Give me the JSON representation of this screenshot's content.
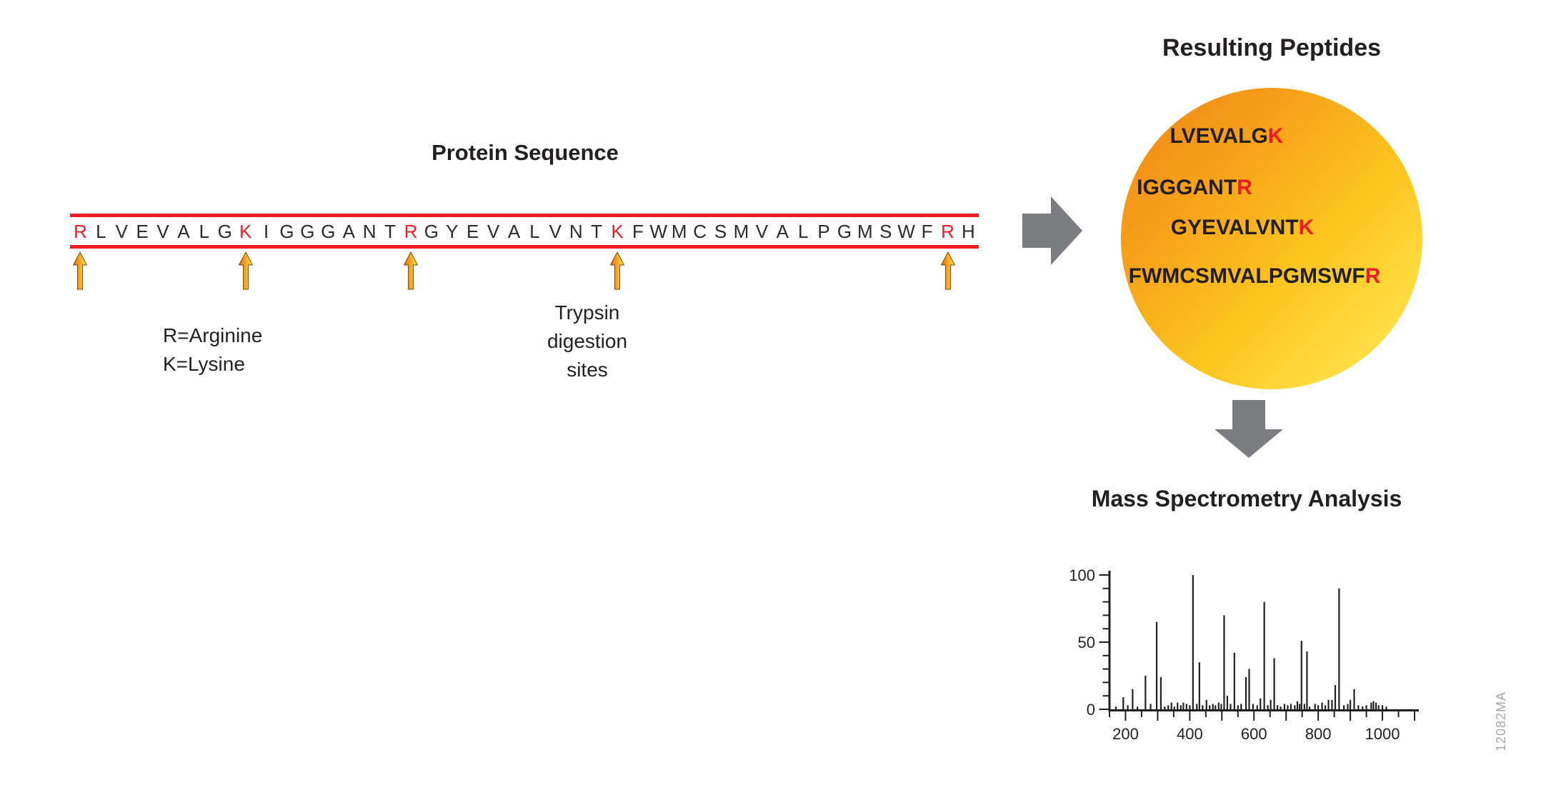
{
  "palette": {
    "accent_red": "#ed1c24",
    "text_black": "#231f20",
    "flow_arrow_gray": "#7b7d80",
    "site_arrow_orange": "#f7941d",
    "site_arrow_yellow": "#ffe14d",
    "circle_orange": "#ee8318",
    "circle_yellow": "#ffe45c",
    "watermark_gray": "#a8a8ab"
  },
  "protein": {
    "title": "Protein Sequence",
    "sequence": "RLVEVALGKIGGGANTRGYEVALVNTKFWMCSMVALPGMSWFRH",
    "red_indices": [
      0,
      8,
      16,
      26,
      42
    ],
    "legend": {
      "line1": "R=Arginine",
      "line2": "K=Lysine"
    },
    "sites_label": {
      "line1": "Trypsin",
      "line2": "digestion",
      "line3": "sites"
    }
  },
  "peptides": {
    "title": "Resulting Peptides",
    "items": [
      {
        "body": "LVEVALG",
        "terminal": "K"
      },
      {
        "body": "IGGGANT",
        "terminal": "R"
      },
      {
        "body": "GYEVALVNT",
        "terminal": "K"
      },
      {
        "body": "FWMCSMVALPGMSWF",
        "terminal": "R"
      }
    ]
  },
  "mass_spec": {
    "title": "Mass Spectrometry Analysis",
    "watermark": "12082MA"
  },
  "chart_data": {
    "type": "bar",
    "subtype": "mass-spectrum",
    "title": "Mass Spectrometry Analysis",
    "xlabel": "",
    "ylabel": "",
    "xlim": [
      150,
      1100
    ],
    "ylim": [
      0,
      100
    ],
    "x_labeled_ticks": [
      200,
      400,
      600,
      800,
      1000
    ],
    "x_minor_tick_step": 50,
    "x_major_tick_step": 100,
    "y_labeled_ticks": [
      0,
      50,
      100
    ],
    "y_minor_tick_step": 10,
    "grid": false,
    "legend_position": "none",
    "peaks": [
      [
        170,
        2
      ],
      [
        193,
        9
      ],
      [
        207,
        3
      ],
      [
        222,
        15
      ],
      [
        237,
        2
      ],
      [
        262,
        25
      ],
      [
        278,
        4
      ],
      [
        297,
        65
      ],
      [
        310,
        24
      ],
      [
        322,
        2
      ],
      [
        333,
        3
      ],
      [
        343,
        5
      ],
      [
        352,
        2
      ],
      [
        362,
        5
      ],
      [
        372,
        3
      ],
      [
        380,
        5
      ],
      [
        390,
        4
      ],
      [
        400,
        3
      ],
      [
        410,
        100
      ],
      [
        422,
        4
      ],
      [
        430,
        35
      ],
      [
        440,
        3
      ],
      [
        452,
        7
      ],
      [
        462,
        3
      ],
      [
        472,
        4
      ],
      [
        480,
        3
      ],
      [
        490,
        5
      ],
      [
        498,
        4
      ],
      [
        507,
        70
      ],
      [
        517,
        10
      ],
      [
        527,
        4
      ],
      [
        539,
        42
      ],
      [
        550,
        3
      ],
      [
        560,
        4
      ],
      [
        575,
        24
      ],
      [
        585,
        30
      ],
      [
        597,
        4
      ],
      [
        610,
        3
      ],
      [
        620,
        8
      ],
      [
        632,
        80
      ],
      [
        643,
        3
      ],
      [
        652,
        7
      ],
      [
        663,
        38
      ],
      [
        673,
        3
      ],
      [
        683,
        2
      ],
      [
        695,
        4
      ],
      [
        705,
        3
      ],
      [
        715,
        4
      ],
      [
        727,
        3
      ],
      [
        735,
        6
      ],
      [
        742,
        4
      ],
      [
        748,
        51
      ],
      [
        757,
        4
      ],
      [
        765,
        43
      ],
      [
        773,
        2
      ],
      [
        790,
        4
      ],
      [
        800,
        3
      ],
      [
        812,
        5
      ],
      [
        822,
        3
      ],
      [
        832,
        7
      ],
      [
        843,
        7
      ],
      [
        853,
        18
      ],
      [
        865,
        90
      ],
      [
        880,
        3
      ],
      [
        892,
        4
      ],
      [
        900,
        7
      ],
      [
        912,
        15
      ],
      [
        925,
        3
      ],
      [
        938,
        2
      ],
      [
        950,
        3
      ],
      [
        965,
        5
      ],
      [
        972,
        6
      ],
      [
        980,
        5
      ],
      [
        988,
        3
      ],
      [
        1000,
        3
      ],
      [
        1012,
        2
      ]
    ]
  }
}
